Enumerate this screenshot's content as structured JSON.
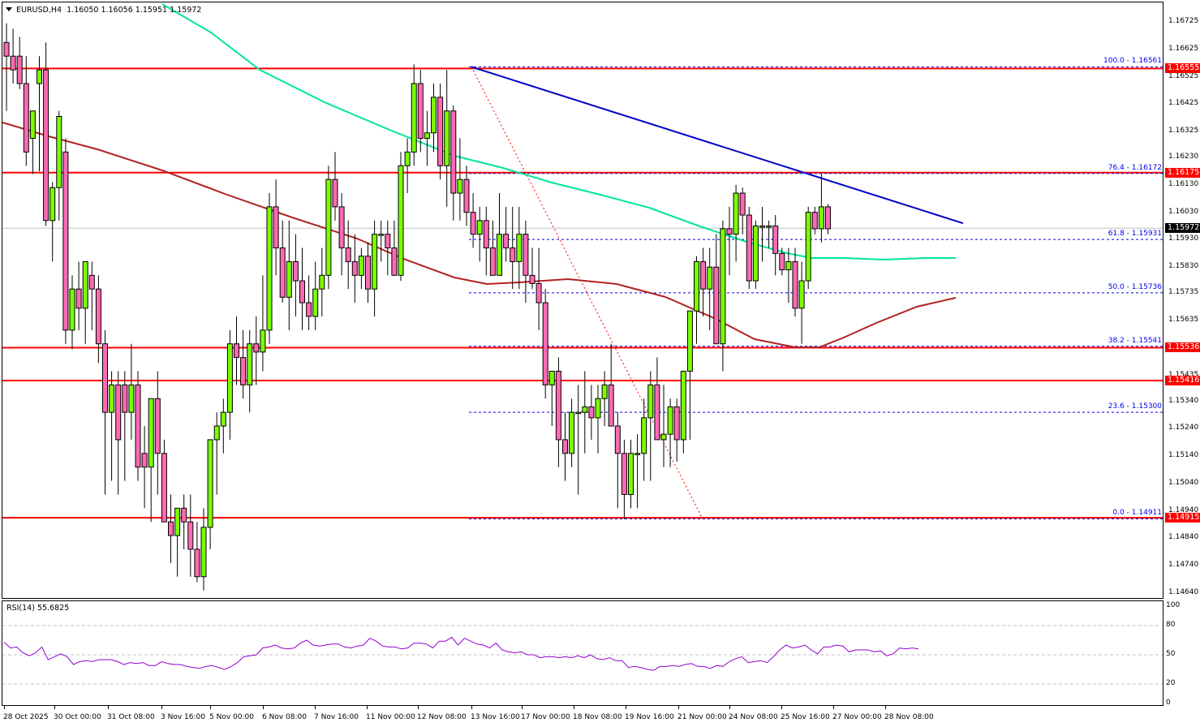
{
  "header": {
    "symbol_timeframe": "EURUSD,H4",
    "open": "1.16050",
    "high": "1.16056",
    "low": "1.15951",
    "close": "1.15972"
  },
  "rsi": {
    "label": "RSI(14) 55.6825",
    "levels": [
      "100",
      "80",
      "50",
      "20",
      "0"
    ]
  },
  "price_axis": {
    "ticks": [
      "1.16725",
      "1.16625",
      "1.16525",
      "1.16425",
      "1.16325",
      "1.16230",
      "1.16130",
      "1.16030",
      "1.15930",
      "1.15830",
      "1.15735",
      "1.15635",
      "1.15435",
      "1.15340",
      "1.15240",
      "1.15140",
      "1.15040",
      "1.14940",
      "1.14840",
      "1.14740",
      "1.14640"
    ],
    "current_price": "1.15972",
    "horizontal_levels": [
      {
        "price": "1.16555",
        "color": "#ff0000"
      },
      {
        "price": "1.16175",
        "color": "#ff0000"
      },
      {
        "price": "1.15536",
        "color": "#ff0000"
      },
      {
        "price": "1.15416",
        "color": "#ff0000"
      },
      {
        "price": "1.14915",
        "color": "#ff0000"
      }
    ]
  },
  "fibonacci": {
    "levels": [
      {
        "label": "100.0 - 1.16561",
        "price": 1.16561
      },
      {
        "label": "76.4 - 1.16172",
        "price": 1.16172
      },
      {
        "label": "61.8 - 1.15931",
        "price": 1.15931
      },
      {
        "label": "50.0 - 1.15736",
        "price": 1.15736
      },
      {
        "label": "38.2 - 1.15541",
        "price": 1.15541
      },
      {
        "label": "23.6 - 1.15300",
        "price": 1.153
      },
      {
        "label": "0.0 - 1.14911",
        "price": 1.14911
      }
    ],
    "color": "#0000ee"
  },
  "time_axis": {
    "labels": [
      "28 Oct 2025",
      "30 Oct 00:00",
      "31 Oct 08:00",
      "3 Nov 16:00",
      "5 Nov 00:00",
      "6 Nov 08:00",
      "7 Nov 16:00",
      "11 Nov 00:00",
      "12 Nov 08:00",
      "13 Nov 16:00",
      "17 Nov 00:00",
      "18 Nov 08:00",
      "19 Nov 16:00",
      "21 Nov 00:00",
      "24 Nov 08:00",
      "25 Nov 16:00",
      "27 Nov 00:00",
      "28 Nov 08:00"
    ]
  },
  "colors": {
    "bull": "#7cfc00",
    "bear": "#ff69b4",
    "ma_fast": "#00e69a",
    "ma_slow": "#b22222",
    "trendline": "#0000cc",
    "rsi_line": "#9400d3",
    "level": "#ff0000",
    "current_price_tag": "#000000"
  },
  "chart_data": {
    "type": "candlestick",
    "title": "EURUSD,H4",
    "xlabel": "",
    "ylabel": "",
    "ylim": [
      1.1464,
      1.16725
    ],
    "grid": false,
    "categories_hint": "H4 bars from 28 Oct 2025 to 28 Nov 2025",
    "candles": [
      [
        1.1665,
        1.1672,
        1.164,
        1.166
      ],
      [
        1.166,
        1.167,
        1.165,
        1.1655
      ],
      [
        1.166,
        1.1667,
        1.1648,
        1.165
      ],
      [
        1.165,
        1.166,
        1.162,
        1.1625
      ],
      [
        1.163,
        1.164,
        1.1617,
        1.164
      ],
      [
        1.165,
        1.166,
        1.1618,
        1.1655
      ],
      [
        1.1655,
        1.1665,
        1.1598,
        1.16
      ],
      [
        1.16,
        1.1614,
        1.1585,
        1.1612
      ],
      [
        1.1612,
        1.164,
        1.16,
        1.1638
      ],
      [
        1.1625,
        1.163,
        1.1555,
        1.156
      ],
      [
        1.156,
        1.158,
        1.1553,
        1.1575
      ],
      [
        1.1575,
        1.1585,
        1.156,
        1.1568
      ],
      [
        1.1568,
        1.1578,
        1.1555,
        1.1585
      ],
      [
        1.158,
        1.1585,
        1.156,
        1.1575
      ],
      [
        1.1575,
        1.158,
        1.1548,
        1.1555
      ],
      [
        1.1555,
        1.156,
        1.15,
        1.153
      ],
      [
        1.153,
        1.1545,
        1.1505,
        1.154
      ],
      [
        1.154,
        1.1545,
        1.15,
        1.152
      ],
      [
        1.154,
        1.1545,
        1.1505,
        1.153
      ],
      [
        1.153,
        1.1555,
        1.152,
        1.154
      ],
      [
        1.154,
        1.1545,
        1.1505,
        1.151
      ],
      [
        1.1515,
        1.1525,
        1.1495,
        1.151
      ],
      [
        1.151,
        1.152,
        1.149,
        1.1535
      ],
      [
        1.1535,
        1.1545,
        1.15,
        1.1515
      ],
      [
        1.1515,
        1.152,
        1.1495,
        1.149
      ],
      [
        1.149,
        1.15,
        1.1475,
        1.1485
      ],
      [
        1.1485,
        1.1495,
        1.147,
        1.1495
      ],
      [
        1.1495,
        1.15,
        1.148,
        1.149
      ],
      [
        1.149,
        1.15,
        1.147,
        1.148
      ],
      [
        1.148,
        1.149,
        1.1468,
        1.147
      ],
      [
        1.147,
        1.1495,
        1.1465,
        1.1488
      ],
      [
        1.1488,
        1.15,
        1.148,
        1.152
      ],
      [
        1.152,
        1.153,
        1.15,
        1.1525
      ],
      [
        1.1525,
        1.1535,
        1.1515,
        1.153
      ],
      [
        1.153,
        1.156,
        1.152,
        1.1555
      ],
      [
        1.1555,
        1.1565,
        1.154,
        1.155
      ],
      [
        1.155,
        1.156,
        1.1535,
        1.154
      ],
      [
        1.154,
        1.156,
        1.153,
        1.1555
      ],
      [
        1.1555,
        1.1565,
        1.154,
        1.1552
      ],
      [
        1.1552,
        1.158,
        1.1545,
        1.156
      ],
      [
        1.156,
        1.161,
        1.1555,
        1.1605
      ],
      [
        1.1605,
        1.1615,
        1.158,
        1.159
      ],
      [
        1.159,
        1.16,
        1.157,
        1.1572
      ],
      [
        1.1572,
        1.16,
        1.156,
        1.1585
      ],
      [
        1.1585,
        1.1595,
        1.1565,
        1.1578
      ],
      [
        1.1578,
        1.159,
        1.156,
        1.157
      ],
      [
        1.157,
        1.158,
        1.156,
        1.1565
      ],
      [
        1.1565,
        1.1585,
        1.156,
        1.1575
      ],
      [
        1.1575,
        1.159,
        1.1565,
        1.158
      ],
      [
        1.158,
        1.162,
        1.1575,
        1.1615
      ],
      [
        1.1615,
        1.1625,
        1.16,
        1.1605
      ],
      [
        1.1605,
        1.161,
        1.158,
        1.159
      ],
      [
        1.159,
        1.16,
        1.1575,
        1.1585
      ],
      [
        1.1585,
        1.1595,
        1.157,
        1.158
      ],
      [
        1.158,
        1.159,
        1.1575,
        1.1587
      ],
      [
        1.1587,
        1.1592,
        1.157,
        1.1575
      ],
      [
        1.1575,
        1.16,
        1.1565,
        1.1595
      ],
      [
        1.1595,
        1.16,
        1.1585,
        1.1595
      ],
      [
        1.1595,
        1.16,
        1.158,
        1.159
      ],
      [
        1.159,
        1.16,
        1.158,
        1.158
      ],
      [
        1.158,
        1.1625,
        1.1578,
        1.162
      ],
      [
        1.162,
        1.163,
        1.161,
        1.1625
      ],
      [
        1.1625,
        1.1657,
        1.162,
        1.165
      ],
      [
        1.165,
        1.1655,
        1.1625,
        1.163
      ],
      [
        1.163,
        1.164,
        1.162,
        1.1632
      ],
      [
        1.1632,
        1.165,
        1.1625,
        1.1645
      ],
      [
        1.1645,
        1.165,
        1.1615,
        1.162
      ],
      [
        1.162,
        1.1655,
        1.1605,
        1.164
      ],
      [
        1.164,
        1.1642,
        1.16,
        1.161
      ],
      [
        1.161,
        1.163,
        1.16,
        1.1615
      ],
      [
        1.1615,
        1.162,
        1.1598,
        1.1603
      ],
      [
        1.1603,
        1.161,
        1.159,
        1.1595
      ],
      [
        1.1595,
        1.1605,
        1.1585,
        1.16
      ],
      [
        1.16,
        1.1605,
        1.158,
        1.159
      ],
      [
        1.159,
        1.16,
        1.158,
        1.158
      ],
      [
        1.158,
        1.161,
        1.1585,
        1.1595
      ],
      [
        1.1595,
        1.1605,
        1.1585,
        1.159
      ],
      [
        1.159,
        1.1605,
        1.1575,
        1.1585
      ],
      [
        1.1585,
        1.1605,
        1.1575,
        1.1595
      ],
      [
        1.1595,
        1.16,
        1.157,
        1.158
      ],
      [
        1.158,
        1.159,
        1.1575,
        1.1577
      ],
      [
        1.1577,
        1.159,
        1.156,
        1.157
      ],
      [
        1.157,
        1.1575,
        1.1535,
        1.154
      ],
      [
        1.154,
        1.1545,
        1.1525,
        1.1545
      ],
      [
        1.1545,
        1.155,
        1.151,
        1.152
      ],
      [
        1.152,
        1.153,
        1.1505,
        1.1515
      ],
      [
        1.1515,
        1.1535,
        1.151,
        1.153
      ],
      [
        1.153,
        1.154,
        1.15,
        1.153
      ],
      [
        1.153,
        1.1545,
        1.1515,
        1.1532
      ],
      [
        1.1532,
        1.154,
        1.152,
        1.1528
      ],
      [
        1.1528,
        1.154,
        1.1515,
        1.1535
      ],
      [
        1.1535,
        1.1545,
        1.1525,
        1.154
      ],
      [
        1.154,
        1.1555,
        1.153,
        1.1525
      ],
      [
        1.1525,
        1.153,
        1.1495,
        1.1515
      ],
      [
        1.1515,
        1.152,
        1.1491,
        1.15
      ],
      [
        1.15,
        1.152,
        1.1495,
        1.1515
      ],
      [
        1.1515,
        1.1522,
        1.1495,
        1.1515
      ],
      [
        1.1515,
        1.1535,
        1.1505,
        1.1528
      ],
      [
        1.1528,
        1.1545,
        1.1505,
        1.154
      ],
      [
        1.154,
        1.155,
        1.152,
        1.152
      ],
      [
        1.152,
        1.154,
        1.151,
        1.1522
      ],
      [
        1.1522,
        1.1535,
        1.151,
        1.1532
      ],
      [
        1.1532,
        1.1535,
        1.1512,
        1.152
      ],
      [
        1.152,
        1.1545,
        1.1515,
        1.1545
      ],
      [
        1.1545,
        1.156,
        1.152,
        1.1567
      ],
      [
        1.1567,
        1.1587,
        1.1555,
        1.1585
      ],
      [
        1.1585,
        1.159,
        1.1565,
        1.1575
      ],
      [
        1.1575,
        1.159,
        1.156,
        1.1583
      ],
      [
        1.1583,
        1.1595,
        1.1555,
        1.1555
      ],
      [
        1.1555,
        1.16,
        1.1545,
        1.1597
      ],
      [
        1.1597,
        1.1605,
        1.158,
        1.1595
      ],
      [
        1.1595,
        1.1613,
        1.1585,
        1.161
      ],
      [
        1.161,
        1.1612,
        1.1595,
        1.1602
      ],
      [
        1.1602,
        1.1605,
        1.1575,
        1.1578
      ],
      [
        1.1578,
        1.16,
        1.1575,
        1.1598
      ],
      [
        1.1598,
        1.1605,
        1.1585,
        1.1598
      ],
      [
        1.1598,
        1.16,
        1.159,
        1.1598
      ],
      [
        1.1598,
        1.1602,
        1.158,
        1.1588
      ],
      [
        1.1588,
        1.159,
        1.158,
        1.1582
      ],
      [
        1.1582,
        1.159,
        1.157,
        1.1585
      ],
      [
        1.1585,
        1.159,
        1.1565,
        1.1568
      ],
      [
        1.1568,
        1.1585,
        1.1555,
        1.1578
      ],
      [
        1.1578,
        1.1605,
        1.1575,
        1.1603
      ],
      [
        1.1603,
        1.1605,
        1.1595,
        1.1597
      ],
      [
        1.1597,
        1.1617,
        1.1592,
        1.1605
      ],
      [
        1.1605,
        1.1606,
        1.1595,
        1.1597
      ]
    ],
    "moving_averages": [
      {
        "name": "fast MA",
        "color": "#00e69a",
        "description": "descends from ~1.1675 at 3 Nov to ~1.1587 at 28 Nov, flattening at the end"
      },
      {
        "name": "slow MA",
        "color": "#b22222",
        "description": "descends from ~1.1637 at 28 Oct to ~1.1553 around 25 Nov, then rises to ~1.1570"
      }
    ],
    "trendline": {
      "from": {
        "x_label": "13 Nov 16:00",
        "price": 1.16561
      },
      "to": {
        "x_label": "28 Nov 08:00",
        "price": 1.1599
      }
    },
    "rsi_series_approx": [
      63,
      57,
      58,
      52,
      49,
      52,
      58,
      45,
      48,
      51,
      48,
      40,
      43,
      44,
      43,
      45,
      45,
      45,
      43,
      40,
      42,
      41,
      42,
      39,
      39,
      43,
      41,
      40,
      40,
      38,
      37,
      36,
      38,
      39,
      37,
      35,
      38,
      42,
      48,
      49,
      50,
      57,
      58,
      60,
      57,
      56,
      57,
      62,
      65,
      60,
      59,
      60,
      61,
      61,
      58,
      57,
      59,
      60,
      67,
      64,
      59,
      58,
      58,
      56,
      57,
      62,
      62,
      61,
      57,
      64,
      64,
      68,
      60,
      67,
      64,
      61,
      60,
      57,
      62,
      55,
      53,
      52,
      53,
      50,
      50,
      47,
      48,
      48,
      47,
      48,
      47,
      49,
      47,
      50,
      46,
      45,
      47,
      44,
      44,
      37,
      38,
      37,
      35,
      34,
      38,
      38,
      39,
      38,
      40,
      41,
      38,
      38,
      36,
      39,
      38,
      43,
      46,
      48,
      42,
      43,
      44,
      42,
      48,
      55,
      60,
      57,
      58,
      60,
      55,
      51,
      58,
      58,
      60,
      59,
      53,
      55,
      55,
      55,
      53,
      54,
      49,
      51,
      57,
      56,
      57,
      56
    ]
  }
}
